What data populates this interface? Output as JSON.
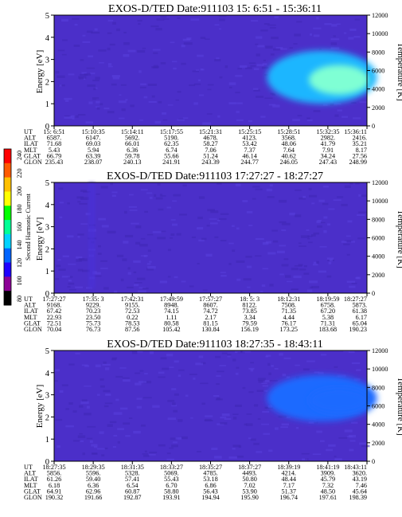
{
  "colorbar": {
    "label": "Second Harmonic Current",
    "ticks": [
      "240",
      "220",
      "200",
      "180",
      "160",
      "140",
      "120",
      "100",
      "80"
    ],
    "colors": [
      "#ff0000",
      "#ff5a00",
      "#ffc000",
      "#ffff00",
      "#00ff00",
      "#00ff96",
      "#00d2ff",
      "#0064ff",
      "#1e00ff",
      "#8c0096",
      "#000000"
    ]
  },
  "chart_data": [
    {
      "type": "heatmap",
      "title": "EXOS-D/TED   Date:911103  15: 6:51 - 15:36:11",
      "ylabel": "Energy [eV]",
      "ylim": [
        0,
        5
      ],
      "yticks": [
        "0",
        "1",
        "2",
        "3",
        "4",
        "5"
      ],
      "y2label": "Temperature [K]",
      "y2lim": [
        0,
        12000
      ],
      "y2ticks": [
        "0",
        "2000",
        "4000",
        "6000",
        "8000",
        "10000",
        "12000"
      ],
      "row_labels": [
        "UT",
        "ALT",
        "ILAT",
        "MLT",
        "GLAT",
        "GLON"
      ],
      "rows": [
        [
          "15: 6:51",
          "15:10:35",
          "15:14:11",
          "15:17:55",
          "15:21:31",
          "15:25:15",
          "15:28:51",
          "15:32:35",
          "15:36:11"
        ],
        [
          "6587.",
          "6147.",
          "5692.",
          "5190.",
          "4678.",
          "4123.",
          "3568.",
          "2982.",
          "2416."
        ],
        [
          "71.68",
          "69.03",
          "66.01",
          "62.35",
          "58.27",
          "53.42",
          "48.06",
          "41.79",
          "35.21"
        ],
        [
          "5.43",
          "5.94",
          "6.36",
          "6.74",
          "7.06",
          "7.37",
          "7.64",
          "7.91",
          "8.17"
        ],
        [
          "66.79",
          "63.39",
          "59.78",
          "55.66",
          "51.24",
          "46.14",
          "40.62",
          "34.24",
          "27.56"
        ],
        [
          "235.43",
          "238.07",
          "240.13",
          "241.91",
          "243.39",
          "244.77",
          "246.05",
          "247.43",
          "248.99"
        ]
      ],
      "features": [
        {
          "x_range": [
            0.68,
            1.0
          ],
          "energy_range": [
            1.0,
            3.4
          ],
          "level": 140,
          "peak": 180
        }
      ]
    },
    {
      "type": "heatmap",
      "title": "EXOS-D/TED   Date:911103  17:27:27 - 18:27:27",
      "ylabel": "Energy [eV]",
      "ylim": [
        0,
        5
      ],
      "yticks": [
        "0",
        "1",
        "2",
        "3",
        "4",
        "5"
      ],
      "y2label": "Temperature [K]",
      "y2lim": [
        0,
        12000
      ],
      "y2ticks": [
        "0",
        "2000",
        "4000",
        "6000",
        "8000",
        "10000",
        "12000"
      ],
      "row_labels": [
        "UT",
        "ALT",
        "ILAT",
        "MLT",
        "GLAT",
        "GLON"
      ],
      "rows": [
        [
          "17:27:27",
          "17:35: 3",
          "17:42:31",
          "17:49:59",
          "17:57:27",
          "18: 5: 3",
          "18:12:31",
          "18:19:59",
          "18:27:27"
        ],
        [
          "9168.",
          "9229.",
          "9155.",
          "8948.",
          "8607.",
          "8122.",
          "7508.",
          "6758.",
          "5873."
        ],
        [
          "67.42",
          "70.23",
          "72.53",
          "74.15",
          "74.72",
          "73.85",
          "71.35",
          "67.20",
          "61.38"
        ],
        [
          "22.93",
          "23.50",
          "0.22",
          "1.11",
          "2.17",
          "3.34",
          "4.44",
          "5.38",
          "6.17"
        ],
        [
          "72.51",
          "75.73",
          "78.53",
          "80.58",
          "81.15",
          "79.59",
          "76.17",
          "71.31",
          "65.04"
        ],
        [
          "70.04",
          "76.73",
          "87.56",
          "105.42",
          "130.84",
          "156.19",
          "173.25",
          "183.68",
          "190.23"
        ]
      ],
      "features": [
        {
          "x_range": [
            0.11,
            0.13
          ],
          "energy_range": [
            0.2,
            5.0
          ],
          "level": 100,
          "peak": 110
        }
      ]
    },
    {
      "type": "heatmap",
      "title": "EXOS-D/TED   Date:911103  18:27:35 - 18:43:11",
      "ylabel": "Energy [eV]",
      "ylim": [
        0,
        5
      ],
      "yticks": [
        "0",
        "1",
        "2",
        "3",
        "4",
        "5"
      ],
      "y2label": "Temperature [K]",
      "y2lim": [
        0,
        12000
      ],
      "y2ticks": [
        "0",
        "2000",
        "4000",
        "6000",
        "8000",
        "10000",
        "12000"
      ],
      "row_labels": [
        "UT",
        "ALT",
        "ILAT",
        "MLT",
        "GLAT",
        "GLON"
      ],
      "rows": [
        [
          "18:27:35",
          "18:29:35",
          "18:31:35",
          "18:33:27",
          "18:35:27",
          "18:37:27",
          "18:39:19",
          "18:41:19",
          "18:43:11"
        ],
        [
          "5856.",
          "5596.",
          "5328.",
          "5069.",
          "4785.",
          "4493.",
          "4214.",
          "3909.",
          "3620."
        ],
        [
          "61.26",
          "59.40",
          "57.41",
          "55.43",
          "53.18",
          "50.80",
          "48.44",
          "45.79",
          "43.19"
        ],
        [
          "6.18",
          "6.36",
          "6.54",
          "6.70",
          "6.86",
          "7.02",
          "7.17",
          "7.32",
          "7.46"
        ],
        [
          "64.91",
          "62.96",
          "60.87",
          "58.80",
          "56.43",
          "53.90",
          "51.37",
          "48.50",
          "45.64"
        ],
        [
          "190.32",
          "191.66",
          "192.87",
          "193.91",
          "194.94",
          "195.90",
          "196.74",
          "197.61",
          "198.39"
        ]
      ],
      "features": [
        {
          "x_range": [
            0.68,
            1.0
          ],
          "energy_range": [
            1.8,
            3.9
          ],
          "level": 120,
          "peak": 130
        }
      ]
    }
  ]
}
